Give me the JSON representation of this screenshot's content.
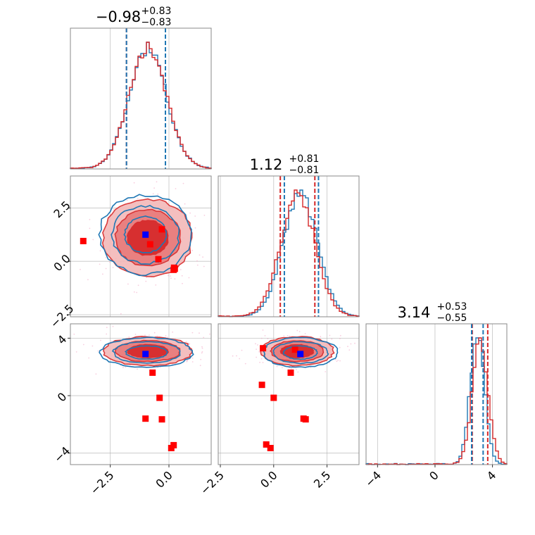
{
  "chart_data": {
    "type": "corner",
    "colors": {
      "series_a": "#1f77b4",
      "series_b": "#d62728",
      "truth_marker": "#0000ff",
      "sample_marker": "#ff0000"
    },
    "grid": true,
    "panels": {
      "diag": [
        {
          "title": {
            "value": "−0.98",
            "plus": "+0.83",
            "minus": "−0.83"
          },
          "x_range": [
            -4.2,
            1.8
          ],
          "quantiles_a": [
            -1.81,
            -0.15
          ],
          "quantiles_b": [
            -1.81,
            -0.15
          ],
          "hist_a_center": -0.9,
          "hist_a_sigma": 0.8,
          "hist_b_center": -0.9,
          "hist_b_sigma": 0.8
        },
        {
          "title": {
            "value": "1.12",
            "plus": "+0.81",
            "minus": "−0.81"
          },
          "x_range": [
            -2.6,
            4.0
          ],
          "quantiles_a": [
            0.5,
            2.1
          ],
          "quantiles_b": [
            0.31,
            1.93
          ],
          "hist_a_center": 1.25,
          "hist_a_sigma": 0.8,
          "hist_b_center": 1.12,
          "hist_b_sigma": 0.8
        },
        {
          "title": {
            "value": "3.14",
            "plus": "+0.53",
            "minus": "−0.55"
          },
          "x_range": [
            -4.8,
            5.0
          ],
          "quantiles_a": [
            2.55,
            3.35
          ],
          "quantiles_b": [
            2.59,
            3.67
          ],
          "hist_a_center": 2.95,
          "hist_a_sigma": 0.5,
          "hist_b_center": 3.14,
          "hist_b_sigma": 0.55
        }
      ],
      "scatter": [
        {
          "row": 1,
          "col": 0,
          "x_range": [
            -4.2,
            1.8
          ],
          "y_range": [
            -2.6,
            4.0
          ],
          "center_a": [
            -1.0,
            1.25
          ],
          "center_b": [
            -0.9,
            1.1
          ],
          "sigma": [
            0.95,
            0.9
          ],
          "truth": [
            -1.0,
            1.25
          ],
          "samples": [
            [
              -0.3,
              1.5
            ],
            [
              -0.8,
              0.8
            ],
            [
              -0.45,
              0.1
            ],
            [
              0.2,
              -0.4
            ],
            [
              0.25,
              -0.35
            ],
            [
              0.22,
              -0.3
            ],
            [
              -3.65,
              0.95
            ]
          ]
        },
        {
          "row": 2,
          "col": 0,
          "x_range": [
            -4.2,
            1.8
          ],
          "y_range": [
            -4.8,
            5.0
          ],
          "center_a": [
            -0.95,
            3.0
          ],
          "center_b": [
            -0.9,
            3.1
          ],
          "sigma": [
            0.95,
            0.5
          ],
          "truth": [
            -1.0,
            2.9
          ],
          "samples": [
            [
              -0.7,
              1.6
            ],
            [
              -0.4,
              -0.15
            ],
            [
              -1.0,
              -1.6
            ],
            [
              -0.3,
              -1.65
            ],
            [
              0.1,
              -3.65
            ],
            [
              0.2,
              -3.45
            ]
          ]
        },
        {
          "row": 2,
          "col": 1,
          "x_range": [
            -2.6,
            4.0
          ],
          "y_range": [
            -4.8,
            5.0
          ],
          "center_a": [
            1.25,
            3.0
          ],
          "center_b": [
            1.1,
            3.1
          ],
          "sigma": [
            0.85,
            0.5
          ],
          "truth": [
            1.25,
            2.9
          ],
          "samples": [
            [
              -0.5,
              3.3
            ],
            [
              1.0,
              3.2
            ],
            [
              0.8,
              1.6
            ],
            [
              -0.55,
              0.75
            ],
            [
              0.0,
              -0.15
            ],
            [
              1.4,
              -1.6
            ],
            [
              1.5,
              -1.65
            ],
            [
              -0.35,
              -3.4
            ],
            [
              -0.15,
              -3.65
            ]
          ]
        }
      ]
    },
    "ticks": {
      "col0_x": [
        "−2.5",
        "0.0"
      ],
      "col0_x_values": [
        -2.5,
        0.0
      ],
      "col1_x": [
        "−2.5",
        "0.0",
        "2.5"
      ],
      "col1_x_values": [
        -2.5,
        0.0,
        2.5
      ],
      "col2_x": [
        "−4",
        "0",
        "4"
      ],
      "col2_x_values": [
        -4,
        0,
        4
      ],
      "row1_y": [
        "−2.5",
        "0.0",
        "2.5"
      ],
      "row1_y_values": [
        -2.5,
        0.0,
        2.5
      ],
      "row2_y": [
        "−4",
        "0",
        "4"
      ],
      "row2_y_values": [
        -4,
        0,
        4
      ]
    }
  }
}
